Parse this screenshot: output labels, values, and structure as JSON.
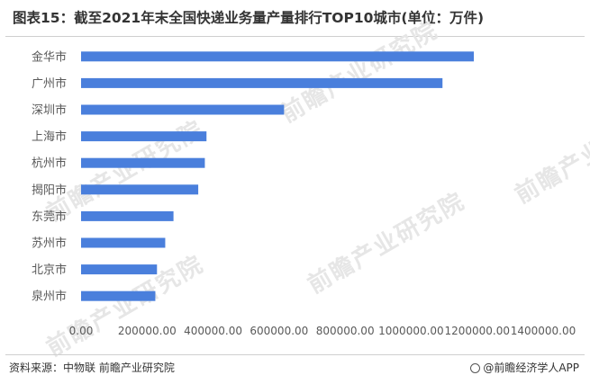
{
  "title": "图表15：截至2021年末全国快递业务量产量排行TOP10城市(单位：万件)",
  "footer": {
    "source": "资料来源：中物联 前瞻产业研究院",
    "brand": "@前瞻经济学人APP"
  },
  "watermark_text": "前瞻产业研究院",
  "colors": {
    "bar": "#4a7fdc",
    "axis_text": "#595959"
  },
  "chart_data": {
    "type": "bar",
    "orientation": "horizontal",
    "title": "图表15：截至2021年末全国快递业务量产量排行TOP10城市(单位：万件)",
    "categories": [
      "金华市",
      "广州市",
      "深圳市",
      "上海市",
      "杭州市",
      "揭阳市",
      "东莞市",
      "苏州市",
      "北京市",
      "泉州市"
    ],
    "values": [
      1190000,
      1095000,
      615000,
      380000,
      375000,
      355000,
      280000,
      255000,
      230000,
      225000
    ],
    "xlim": [
      0,
      1400000
    ],
    "xticks": [
      "0.00",
      "200000.00",
      "400000.00",
      "600000.00",
      "800000.00",
      "1000000.00",
      "1200000.00",
      "1400000.00"
    ],
    "xtick_values": [
      0,
      200000,
      400000,
      600000,
      800000,
      1000000,
      1200000,
      1400000
    ],
    "grid": false,
    "legend": "none"
  }
}
